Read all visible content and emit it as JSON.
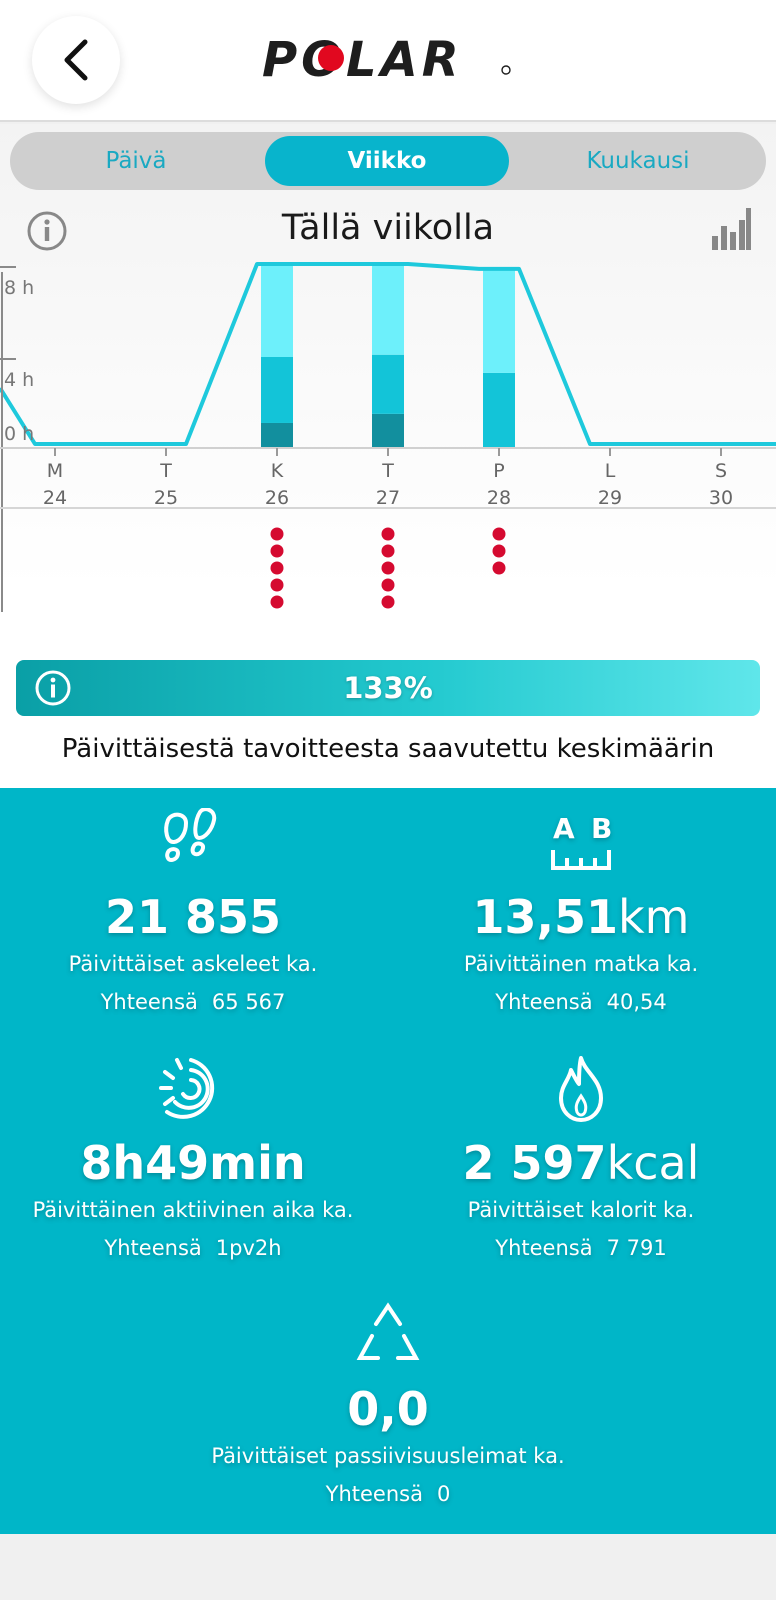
{
  "header": {
    "logo_text": "POLAR"
  },
  "tabs": [
    {
      "label": "Päivä",
      "active": false
    },
    {
      "label": "Viikko",
      "active": true
    },
    {
      "label": "Kuukausi",
      "active": false
    }
  ],
  "week_title": "Tällä viikolla",
  "chart_data": {
    "type": "bar",
    "y_ticks": [
      "8 h",
      "4 h",
      "0 h"
    ],
    "days": [
      {
        "letter": "M",
        "date": "24"
      },
      {
        "letter": "T",
        "date": "25"
      },
      {
        "letter": "K",
        "date": "26"
      },
      {
        "letter": "T",
        "date": "27"
      },
      {
        "letter": "P",
        "date": "28"
      },
      {
        "letter": "L",
        "date": "29"
      },
      {
        "letter": "S",
        "date": "30"
      }
    ],
    "series": [
      {
        "values": [
          0,
          0,
          1.1,
          1.5,
          0,
          0,
          0
        ]
      },
      {
        "values": [
          0,
          0,
          2.9,
          2.6,
          3.3,
          0,
          0
        ]
      },
      {
        "values": [
          0,
          0,
          4.2,
          4.3,
          4.5,
          0,
          0
        ]
      }
    ],
    "activity_line_hours": [
      0,
      0,
      10,
      10,
      7.7,
      0,
      0
    ],
    "inactivity_dots": [
      0,
      0,
      5,
      5,
      3,
      0,
      0
    ],
    "ylim": [
      0,
      8
    ],
    "colors": {
      "low": "#128f9e",
      "mid": "#13c4d8",
      "high": "#6df0fb",
      "line": "#1ec9dc",
      "dots": "#d50a30"
    }
  },
  "goal": {
    "percent": "133%",
    "caption": "Päivittäisestä tavoitteesta saavutettu keskimäärin"
  },
  "stats": {
    "steps": {
      "icon": "footprints-icon",
      "value": "21 855",
      "unit": "",
      "label": "Päivittäiset askeleet ka.",
      "total_label": "Yhteensä",
      "total_value": "65 567"
    },
    "distance": {
      "icon": "distance-ab-icon",
      "value": "13,51",
      "unit": "km",
      "label": "Päivittäinen matka ka.",
      "total_label": "Yhteensä",
      "total_value": "40,54"
    },
    "active_time": {
      "icon": "active-time-icon",
      "value": "8h49min",
      "unit": "",
      "label": "Päivittäinen aktiivinen aika ka.",
      "total_label": "Yhteensä",
      "total_value": "1pv2h"
    },
    "calories": {
      "icon": "flame-icon",
      "value": "2 597",
      "unit": "kcal",
      "label": "Päivittäiset kalorit ka.",
      "total_label": "Yhteensä",
      "total_value": "7 791"
    },
    "inactivity": {
      "icon": "inactivity-triangle-icon",
      "value": "0,0",
      "unit": "",
      "label": "Päivittäiset passiivisuusleimat ka.",
      "total_label": "Yhteensä",
      "total_value": "0"
    }
  }
}
